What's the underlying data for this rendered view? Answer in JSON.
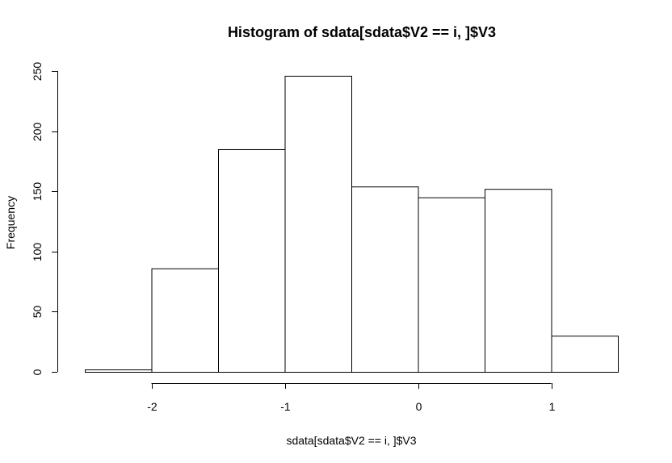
{
  "chart_data": {
    "type": "bar",
    "title": "Histogram of sdata[sdata$V2 == i, ]$V3",
    "xlabel": "sdata[sdata$V2 == i, ]$V3",
    "ylabel": "Frequency",
    "bins": [
      {
        "start": -2.5,
        "end": -2.0,
        "count": 2
      },
      {
        "start": -2.0,
        "end": -1.5,
        "count": 86
      },
      {
        "start": -1.5,
        "end": -1.0,
        "count": 185
      },
      {
        "start": -1.0,
        "end": -0.5,
        "count": 246
      },
      {
        "start": -0.5,
        "end": 0.0,
        "count": 154
      },
      {
        "start": 0.0,
        "end": 0.5,
        "count": 145
      },
      {
        "start": 0.5,
        "end": 1.0,
        "count": 152
      },
      {
        "start": 1.0,
        "end": 1.5,
        "count": 30
      }
    ],
    "xlim": [
      -2.5,
      1.5
    ],
    "ylim": [
      0,
      250
    ],
    "x_ticks": [
      {
        "value": -2,
        "label": "-2"
      },
      {
        "value": -1,
        "label": "-1"
      },
      {
        "value": 0,
        "label": "0"
      },
      {
        "value": 1,
        "label": "1"
      }
    ],
    "y_ticks": [
      {
        "value": 0,
        "label": "0"
      },
      {
        "value": 50,
        "label": "50"
      },
      {
        "value": 100,
        "label": "100"
      },
      {
        "value": 150,
        "label": "150"
      },
      {
        "value": 200,
        "label": "200"
      },
      {
        "value": 250,
        "label": "250"
      }
    ],
    "grid": false,
    "colors": {
      "bar_fill": "#ffffff",
      "bar_stroke": "#000000"
    }
  }
}
